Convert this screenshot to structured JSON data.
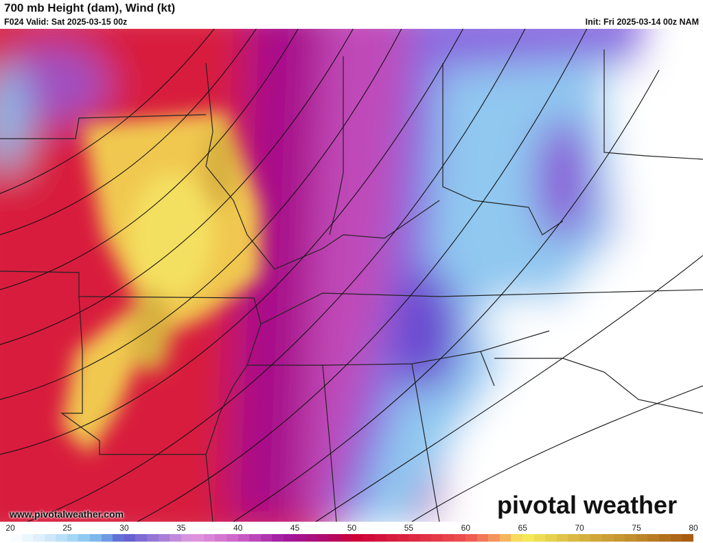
{
  "header": {
    "title": "700 mb Height (dam), Wind (kt)",
    "valid": "F024 Valid: Sat 2025-03-15 00z",
    "init": "Init: Fri 2025-03-14 00z NAM"
  },
  "footer": {
    "url": "www.pivotalweather.com",
    "logo": "pivotal weather"
  },
  "colorbar": {
    "ticks": [
      "20",
      "25",
      "30",
      "35",
      "40",
      "45",
      "50",
      "55",
      "60",
      "65",
      "70",
      "75",
      "80"
    ],
    "min": 20,
    "max": 80,
    "stops": [
      [
        20,
        "#ffffff"
      ],
      [
        23,
        "#d8ecfb"
      ],
      [
        26,
        "#99d3f5"
      ],
      [
        28,
        "#74aee8"
      ],
      [
        30,
        "#5c5cd0"
      ],
      [
        33,
        "#a07ad8"
      ],
      [
        36,
        "#e29ae0"
      ],
      [
        40,
        "#cc62c8"
      ],
      [
        44,
        "#a01aa0"
      ],
      [
        48,
        "#b00a6a"
      ],
      [
        50,
        "#cc0038"
      ],
      [
        55,
        "#dc2640"
      ],
      [
        60,
        "#ee5050"
      ],
      [
        63,
        "#f5a060"
      ],
      [
        65,
        "#f7ee5a"
      ],
      [
        70,
        "#d8b440"
      ],
      [
        75,
        "#c08a2c"
      ],
      [
        80,
        "#a65810"
      ]
    ]
  }
}
